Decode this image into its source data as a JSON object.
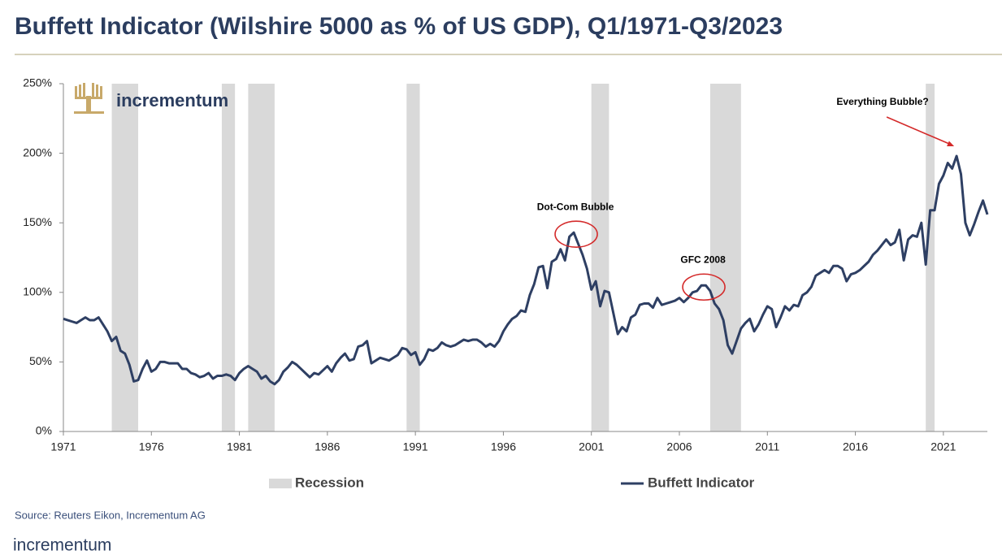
{
  "chart_data": {
    "type": "line",
    "title": "Buffett Indicator (Wilshire 5000 as % of US GDP), Q1/1971-Q3/2023",
    "x": [
      1971,
      1971.25,
      1971.5,
      1971.75,
      1972,
      1972.25,
      1972.5,
      1972.75,
      1973,
      1973.25,
      1973.5,
      1973.75,
      1974,
      1974.25,
      1974.5,
      1974.75,
      1975,
      1975.25,
      1975.5,
      1975.75,
      1976,
      1976.25,
      1976.5,
      1976.75,
      1977,
      1977.25,
      1977.5,
      1977.75,
      1978,
      1978.25,
      1978.5,
      1978.75,
      1979,
      1979.25,
      1979.5,
      1979.75,
      1980,
      1980.25,
      1980.5,
      1980.75,
      1981,
      1981.25,
      1981.5,
      1981.75,
      1982,
      1982.25,
      1982.5,
      1982.75,
      1983,
      1983.25,
      1983.5,
      1983.75,
      1984,
      1984.25,
      1984.5,
      1984.75,
      1985,
      1985.25,
      1985.5,
      1985.75,
      1986,
      1986.25,
      1986.5,
      1986.75,
      1987,
      1987.25,
      1987.5,
      1987.75,
      1988,
      1988.25,
      1988.5,
      1988.75,
      1989,
      1989.25,
      1989.5,
      1989.75,
      1990,
      1990.25,
      1990.5,
      1990.75,
      1991,
      1991.25,
      1991.5,
      1991.75,
      1992,
      1992.25,
      1992.5,
      1992.75,
      1993,
      1993.25,
      1993.5,
      1993.75,
      1994,
      1994.25,
      1994.5,
      1994.75,
      1995,
      1995.25,
      1995.5,
      1995.75,
      1996,
      1996.25,
      1996.5,
      1996.75,
      1997,
      1997.25,
      1997.5,
      1997.75,
      1998,
      1998.25,
      1998.5,
      1998.75,
      1999,
      1999.25,
      1999.5,
      1999.75,
      2000,
      2000.25,
      2000.5,
      2000.75,
      2001,
      2001.25,
      2001.5,
      2001.75,
      2002,
      2002.25,
      2002.5,
      2002.75,
      2003,
      2003.25,
      2003.5,
      2003.75,
      2004,
      2004.25,
      2004.5,
      2004.75,
      2005,
      2005.25,
      2005.5,
      2005.75,
      2006,
      2006.25,
      2006.5,
      2006.75,
      2007,
      2007.25,
      2007.5,
      2007.75,
      2008,
      2008.25,
      2008.5,
      2008.75,
      2009,
      2009.25,
      2009.5,
      2009.75,
      2010,
      2010.25,
      2010.5,
      2010.75,
      2011,
      2011.25,
      2011.5,
      2011.75,
      2012,
      2012.25,
      2012.5,
      2012.75,
      2013,
      2013.25,
      2013.5,
      2013.75,
      2014,
      2014.25,
      2014.5,
      2014.75,
      2015,
      2015.25,
      2015.5,
      2015.75,
      2016,
      2016.25,
      2016.5,
      2016.75,
      2017,
      2017.25,
      2017.5,
      2017.75,
      2018,
      2018.25,
      2018.5,
      2018.75,
      2019,
      2019.25,
      2019.5,
      2019.75,
      2020,
      2020.25,
      2020.5,
      2020.75,
      2021,
      2021.25,
      2021.5,
      2021.75,
      2022,
      2022.25,
      2022.5,
      2022.75,
      2023,
      2023.25,
      2023.5
    ],
    "series": [
      {
        "name": "Buffett Indicator",
        "color": "#2e3f63",
        "values": [
          81,
          80,
          79,
          78,
          80,
          82,
          80,
          80,
          82,
          77,
          72,
          65,
          68,
          58,
          56,
          48,
          36,
          37,
          45,
          51,
          43,
          45,
          50,
          50,
          49,
          49,
          49,
          45,
          45,
          42,
          41,
          39,
          40,
          42,
          38,
          40,
          40,
          41,
          40,
          37,
          42,
          45,
          47,
          45,
          43,
          38,
          40,
          36,
          34,
          37,
          43,
          46,
          50,
          48,
          45,
          42,
          39,
          42,
          41,
          44,
          47,
          43,
          49,
          53,
          56,
          51,
          52,
          61,
          62,
          65,
          49,
          51,
          53,
          52,
          51,
          53,
          55,
          60,
          59,
          55,
          57,
          48,
          52,
          59,
          58,
          60,
          64,
          62,
          61,
          62,
          64,
          66,
          65,
          66,
          66,
          64,
          61,
          63,
          61,
          65,
          72,
          77,
          81,
          83,
          87,
          86,
          98,
          106,
          118,
          119,
          103,
          122,
          124,
          131,
          123,
          140,
          143,
          135,
          127,
          117,
          102,
          108,
          90,
          101,
          100,
          85,
          70,
          75,
          72,
          82,
          84,
          91,
          92,
          92,
          89,
          96,
          91,
          92,
          93,
          94,
          96,
          93,
          96,
          100,
          101,
          105,
          105,
          101,
          92,
          88,
          80,
          62,
          56,
          65,
          74,
          78,
          81,
          72,
          77,
          84,
          90,
          88,
          75,
          82,
          90,
          87,
          91,
          90,
          98,
          100,
          104,
          112,
          114,
          116,
          114,
          119,
          119,
          117,
          108,
          113,
          114,
          116,
          119,
          122,
          127,
          130,
          134,
          138,
          134,
          136,
          145,
          123,
          138,
          141,
          140,
          150,
          120,
          159,
          159,
          178,
          184,
          193,
          189,
          198,
          185,
          150,
          141,
          149,
          158,
          166,
          156
        ]
      }
    ],
    "recessions": {
      "name": "Recession",
      "color": "#d9d9d9",
      "spans": [
        [
          1973.75,
          1975.25
        ],
        [
          1980,
          1980.75
        ],
        [
          1981.5,
          1983
        ],
        [
          1990.5,
          1991.25
        ],
        [
          2001,
          2002
        ],
        [
          2007.75,
          2009.5
        ],
        [
          2020,
          2020.5
        ]
      ]
    },
    "annotations": [
      "Dot-Com Bubble",
      "GFC 2008",
      "Everything Bubble?"
    ],
    "annotation_color": "#d42a2a",
    "xlim": [
      1971,
      2023.5
    ],
    "xticks": [
      1971,
      1976,
      1981,
      1986,
      1991,
      1996,
      2001,
      2006,
      2011,
      2016,
      2021
    ],
    "ylim": [
      0,
      250
    ],
    "yticks": [
      {
        "value": 0,
        "label": "0%"
      },
      {
        "value": 50,
        "label": "50%"
      },
      {
        "value": 100,
        "label": "100%"
      },
      {
        "value": 150,
        "label": "150%"
      },
      {
        "value": 200,
        "label": "200%"
      },
      {
        "value": 250,
        "label": "250%"
      }
    ],
    "grid": false
  },
  "brand": "incrementum",
  "source": "Source: Reuters Eikon, Incrementum AG"
}
